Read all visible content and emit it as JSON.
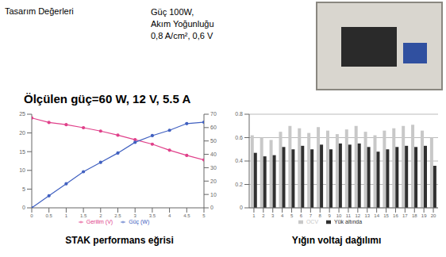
{
  "header": {
    "title": "Tasarım Değerleri",
    "lines": [
      "Güç 100W,",
      "Akım Yoğunluğu",
      "0,8 A/cm², 0,6 V"
    ]
  },
  "measured": "Ölçülen güç=60 W, 12 V, 5.5 A",
  "chart_data": [
    {
      "type": "line",
      "title": "STAK performans eğrisi",
      "x": [
        0,
        0.5,
        1,
        1.5,
        2,
        2.5,
        3,
        3.5,
        4,
        4.5,
        5
      ],
      "xlim": [
        0,
        5
      ],
      "xticks": [
        0,
        0.5,
        1,
        1.5,
        2,
        2.5,
        3,
        3.5,
        4,
        4.5,
        5
      ],
      "ylim": [
        0,
        25
      ],
      "yticks": [
        0,
        5,
        10,
        15,
        20,
        25
      ],
      "y2lim": [
        0,
        70
      ],
      "y2ticks": [
        0,
        10,
        20,
        30,
        40,
        50,
        60,
        70
      ],
      "grid": false,
      "legend": "bottom",
      "series": [
        {
          "name": "Gerilim (V)",
          "color": "#e0408a",
          "marker": "circle",
          "values": [
            24,
            22.8,
            22.2,
            21.4,
            20.5,
            19.4,
            18.2,
            17,
            15.4,
            14,
            12.8
          ]
        },
        {
          "name": "Güç (W)",
          "color": "#4060c0",
          "marker": "circle",
          "axis": "y2",
          "values": [
            0,
            9,
            18,
            27,
            34,
            41,
            49,
            54,
            58,
            63,
            64
          ]
        }
      ]
    },
    {
      "type": "bar",
      "title": "Yığın voltaj dağılımı",
      "categories": [
        "1",
        "2",
        "3",
        "4",
        "5",
        "6",
        "7",
        "8",
        "9",
        "10",
        "11",
        "12",
        "13",
        "14",
        "15",
        "16",
        "17",
        "18",
        "19",
        "20"
      ],
      "ylim": [
        0,
        0.8
      ],
      "yticks": [
        0,
        0.2,
        0.4,
        0.6,
        0.8
      ],
      "grid": true,
      "legend": "bottom",
      "series": [
        {
          "name": "OCV",
          "color": "#c8c8c8",
          "values": [
            0.62,
            0.6,
            0.58,
            0.65,
            0.7,
            0.68,
            0.64,
            0.69,
            0.66,
            0.63,
            0.67,
            0.7,
            0.65,
            0.62,
            0.66,
            0.68,
            0.7,
            0.71,
            0.66,
            0.6
          ]
        },
        {
          "name": "Yük altında",
          "color": "#303030",
          "values": [
            0.47,
            0.44,
            0.45,
            0.52,
            0.5,
            0.53,
            0.5,
            0.54,
            0.5,
            0.55,
            0.54,
            0.55,
            0.52,
            0.48,
            0.5,
            0.52,
            0.53,
            0.52,
            0.53,
            0.36
          ]
        }
      ]
    }
  ]
}
